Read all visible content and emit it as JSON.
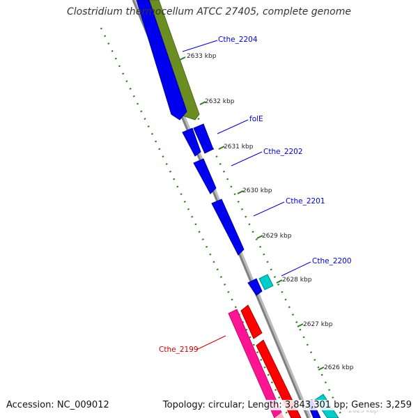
{
  "title": "Clostridium thermocellum ATCC 27405, complete genome",
  "footer": {
    "accession": "Accession: NC_009012",
    "topology": "Topology: circular; Length: 3,843,301 bp; Genes: 3,259"
  },
  "colors": {
    "backbone": "#8c8c8c",
    "tick": "#2e7d1f",
    "forward_cds": "#0000ee",
    "reverse_cds": "#ff1493",
    "rrna": "#00cccc",
    "other_gene": "#6b8e23",
    "red_gene": "#ff0000"
  },
  "ruler": {
    "ticks": [
      "2633 kbp",
      "2632 kbp",
      "2631 kbp",
      "2630 kbp",
      "2629 kbp",
      "2628 kbp",
      "2627 kbp",
      "2626 kbp"
    ],
    "partial_tick": "2625 kbp"
  },
  "gene_labels": [
    {
      "name": "Cthe_2204",
      "color": "#0000cc"
    },
    {
      "name": "folE",
      "color": "#0000cc"
    },
    {
      "name": "Cthe_2202",
      "color": "#0000cc"
    },
    {
      "name": "Cthe_2201",
      "color": "#0000cc"
    },
    {
      "name": "Cthe_2200",
      "color": "#0000cc"
    },
    {
      "name": "Cthe_2199",
      "color": "#cc0000"
    }
  ]
}
